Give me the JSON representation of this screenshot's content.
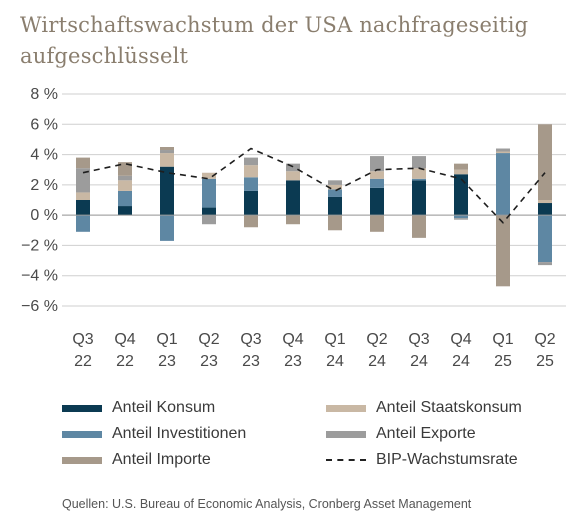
{
  "chart_data": {
    "type": "bar",
    "title": "Wirtschaftswachstum der USA nachfrageseitig aufgeschlüsselt",
    "categories": [
      [
        "Q3",
        "22"
      ],
      [
        "Q4",
        "22"
      ],
      [
        "Q1",
        "23"
      ],
      [
        "Q2",
        "23"
      ],
      [
        "Q3",
        "23"
      ],
      [
        "Q4",
        "23"
      ],
      [
        "Q1",
        "24"
      ],
      [
        "Q2",
        "24"
      ],
      [
        "Q3",
        "24"
      ],
      [
        "Q4",
        "24"
      ],
      [
        "Q1",
        "25"
      ],
      [
        "Q2",
        "25"
      ]
    ],
    "ylim": [
      -6,
      8
    ],
    "yticks": [
      "8 %",
      "6 %",
      "4 %",
      "2 %",
      "0 %",
      "−2 %",
      "−4 %",
      "−6 %"
    ],
    "yticks_values": [
      8,
      6,
      4,
      2,
      0,
      -2,
      -4,
      -6
    ],
    "stack_order": [
      "Anteil Konsum",
      "Anteil Investitionen",
      "Anteil Staatskonsum",
      "Anteil Exporte",
      "Anteil Importe"
    ],
    "series": [
      {
        "name": "Anteil Konsum",
        "color": "#0b3a52",
        "values": [
          1.0,
          0.6,
          3.2,
          0.5,
          1.6,
          2.3,
          1.2,
          1.8,
          2.3,
          2.7,
          0.0,
          0.8
        ]
      },
      {
        "name": "Anteil Investitionen",
        "color": "#5e87a3",
        "values": [
          -1.1,
          1.0,
          -1.7,
          1.9,
          0.9,
          0.0,
          0.5,
          0.6,
          0.1,
          -0.2,
          4.1,
          -3.1
        ]
      },
      {
        "name": "Anteil Staatskonsum",
        "color": "#c9b8a4",
        "values": [
          0.5,
          0.7,
          0.9,
          0.4,
          0.8,
          0.6,
          0.3,
          0.5,
          0.7,
          0.3,
          0.1,
          0.2
        ]
      },
      {
        "name": "Anteil Exporte",
        "color": "#9c9c9c",
        "values": [
          1.6,
          0.3,
          0.2,
          -0.6,
          0.5,
          0.5,
          0.3,
          1.0,
          0.8,
          -0.1,
          0.2,
          -0.2
        ]
      },
      {
        "name": "Anteil Importe",
        "color": "#a6998a",
        "values": [
          0.7,
          0.9,
          0.2,
          0.0,
          -0.8,
          -0.6,
          -1.0,
          -1.1,
          -1.5,
          0.4,
          -4.7,
          5.0
        ]
      }
    ],
    "line": {
      "name": "BIP-Wachstumsrate",
      "values": [
        2.8,
        3.4,
        2.8,
        2.4,
        4.4,
        3.2,
        1.6,
        3.0,
        3.1,
        2.4,
        -0.5,
        2.8
      ]
    },
    "legend_position": "bottom",
    "grid": "horizontal"
  },
  "legend": [
    {
      "label": "Anteil Konsum",
      "color": "#0b3a52",
      "style": "solid"
    },
    {
      "label": "Anteil Staatskonsum",
      "color": "#c9b8a4",
      "style": "solid"
    },
    {
      "label": "Anteil Investitionen",
      "color": "#5e87a3",
      "style": "solid"
    },
    {
      "label": "Anteil Exporte",
      "color": "#9c9c9c",
      "style": "solid"
    },
    {
      "label": "Anteil Importe",
      "color": "#a6998a",
      "style": "solid"
    },
    {
      "label": "BIP-Wachstumsrate",
      "color": "#222222",
      "style": "dashed"
    }
  ],
  "source": "Quellen: U.S. Bureau of Economic Analysis, Cronberg Asset Management"
}
